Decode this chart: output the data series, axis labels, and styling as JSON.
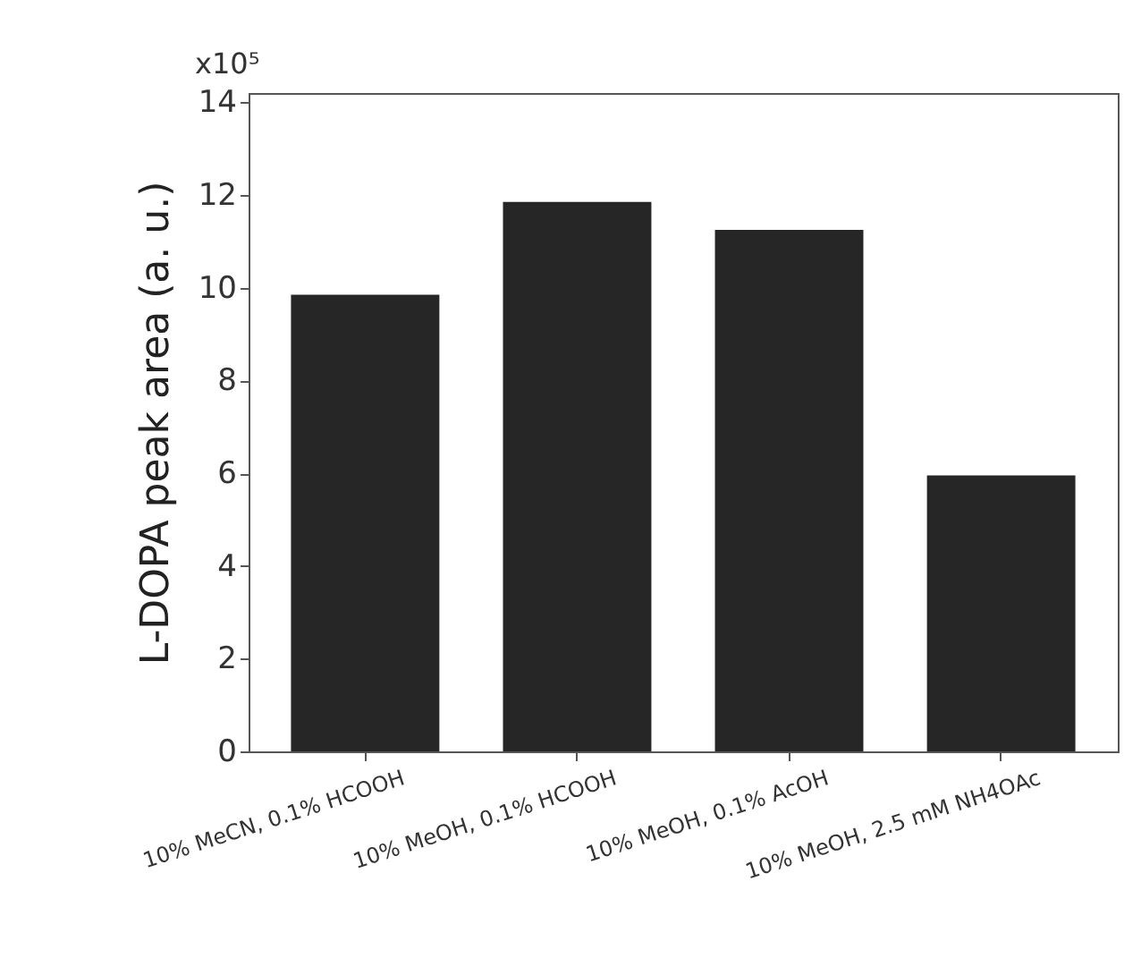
{
  "chart_data": {
    "type": "bar",
    "ylabel": "L-DOPA peak area (a. u.)",
    "categories": [
      "10% MeCN, 0.1% HCOOH",
      "10% MeOH, 0.1% HCOOH",
      "10% MeOH, 0.1% AcOH",
      "10% MeOH, 2.5 mM NH4OAc"
    ],
    "values": [
      9.85,
      11.85,
      11.25,
      5.95
    ],
    "color": "#262626",
    "ylim": [
      0,
      14.2
    ],
    "yticks": [
      0,
      2,
      4,
      6,
      8,
      10,
      12,
      14
    ],
    "annotations": [
      "x10⁵"
    ]
  }
}
